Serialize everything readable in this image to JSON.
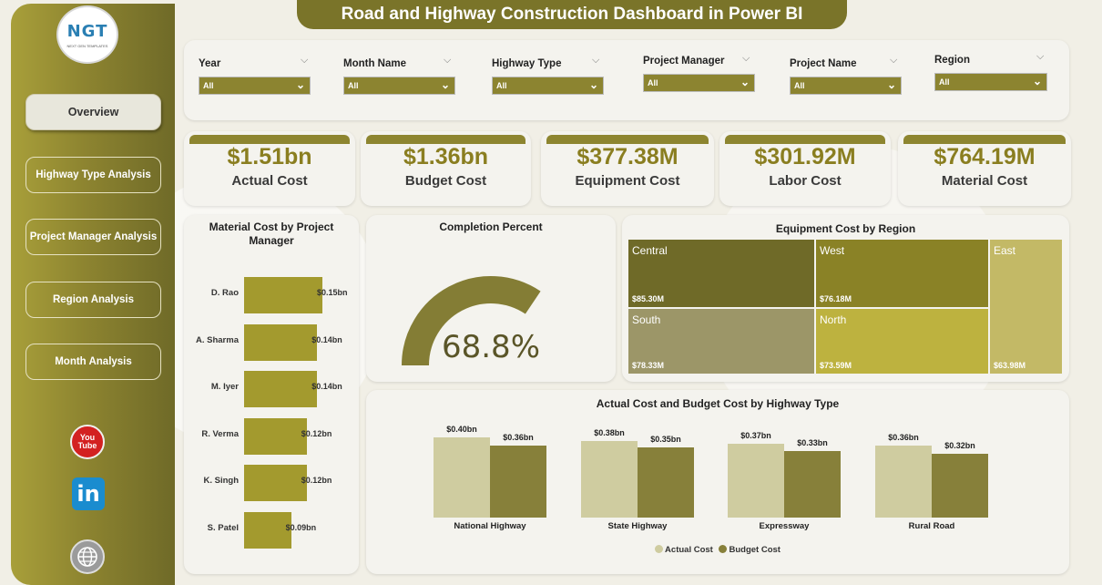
{
  "title": "Road and Highway Construction Dashboard in Power BI",
  "logo": {
    "text": "NGT",
    "tagline": "NEXT GEN TEMPLATES"
  },
  "nav": [
    {
      "label": "Overview",
      "active": true
    },
    {
      "label": "Highway Type Analysis",
      "active": false
    },
    {
      "label": "Project Manager Analysis",
      "active": false
    },
    {
      "label": "Region Analysis",
      "active": false
    },
    {
      "label": "Month Analysis",
      "active": false
    }
  ],
  "social": {
    "youtube": "You Tube",
    "linkedin": "in"
  },
  "filters": [
    {
      "label": "Year",
      "value": "All"
    },
    {
      "label": "Month Name",
      "value": "All"
    },
    {
      "label": "Highway Type",
      "value": "All"
    },
    {
      "label": "Project Manager",
      "value": "All"
    },
    {
      "label": "Project Name",
      "value": "All"
    },
    {
      "label": "Region",
      "value": "All"
    }
  ],
  "kpis": [
    {
      "value": "$1.51bn",
      "label": "Actual Cost"
    },
    {
      "value": "$1.36bn",
      "label": "Budget Cost"
    },
    {
      "value": "$377.38M",
      "label": "Equipment Cost"
    },
    {
      "value": "$301.92M",
      "label": "Labor Cost"
    },
    {
      "value": "$764.19M",
      "label": "Material Cost"
    }
  ],
  "colors": {
    "olive_dark": "#7a7429",
    "olive": "#8d8530",
    "gold_text": "#8a7e20",
    "bar": "#a39a2e",
    "actual": "#cfcca0",
    "budget": "#87803a"
  },
  "chart_data": [
    {
      "type": "bar",
      "orientation": "horizontal",
      "title": "Material Cost by Project Manager",
      "categories": [
        "D. Rao",
        "A. Sharma",
        "M. Iyer",
        "R. Verma",
        "K. Singh",
        "S. Patel"
      ],
      "values": [
        0.15,
        0.14,
        0.14,
        0.12,
        0.12,
        0.09
      ],
      "labels": [
        "$0.15bn",
        "$0.14bn",
        "$0.14bn",
        "$0.12bn",
        "$0.12bn",
        "$0.09bn"
      ],
      "unit": "bn"
    },
    {
      "type": "gauge",
      "title": "Completion Percent",
      "value": 68.8,
      "label": "68.8%",
      "min": 0,
      "max": 100
    },
    {
      "type": "treemap",
      "title": "Equipment Cost by Region",
      "items": [
        {
          "name": "Central",
          "value": 85.3,
          "label": "$85.30M",
          "color": "#6f6a28"
        },
        {
          "name": "West",
          "value": 76.18,
          "label": "$76.18M",
          "color": "#8a8226"
        },
        {
          "name": "South",
          "value": 78.33,
          "label": "$78.33M",
          "color": "#9c9668"
        },
        {
          "name": "North",
          "value": 73.59,
          "label": "$73.59M",
          "color": "#bdb23f"
        },
        {
          "name": "East",
          "value": 63.98,
          "label": "$63.98M",
          "color": "#c3b966"
        }
      ]
    },
    {
      "type": "bar",
      "title": "Actual Cost and Budget Cost by Highway Type",
      "categories": [
        "National Highway",
        "State Highway",
        "Expressway",
        "Rural Road"
      ],
      "series": [
        {
          "name": "Actual Cost",
          "values": [
            0.4,
            0.38,
            0.37,
            0.36
          ],
          "labels": [
            "$0.40bn",
            "$0.38bn",
            "$0.37bn",
            "$0.36bn"
          ],
          "color": "#cfcca0"
        },
        {
          "name": "Budget Cost",
          "values": [
            0.36,
            0.35,
            0.33,
            0.32
          ],
          "labels": [
            "$0.36bn",
            "$0.35bn",
            "$0.33bn",
            "$0.32bn"
          ],
          "color": "#87803a"
        }
      ],
      "legend": "bottom"
    }
  ]
}
